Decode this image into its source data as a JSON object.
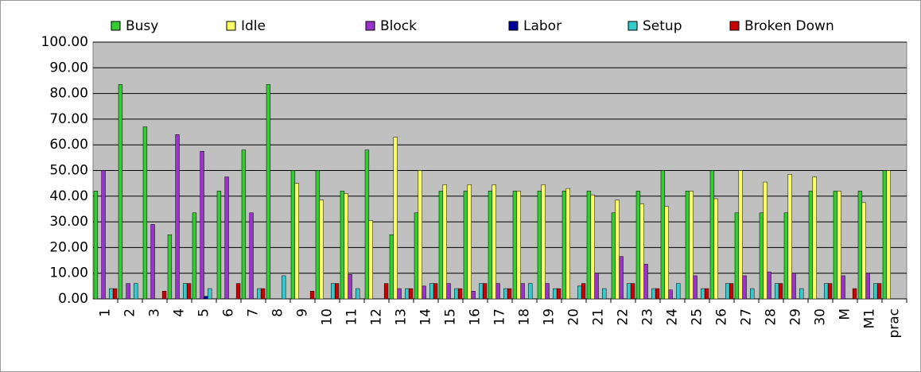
{
  "chart_data": {
    "type": "bar",
    "categories": [
      "1",
      "2",
      "3",
      "4",
      "5",
      "6",
      "7",
      "8",
      "9",
      "10",
      "11",
      "12",
      "13",
      "14",
      "15",
      "16",
      "17",
      "18",
      "19",
      "20",
      "21",
      "22",
      "23",
      "24",
      "25",
      "26",
      "27",
      "28",
      "29",
      "30",
      "M",
      "M1",
      "prac"
    ],
    "series": [
      {
        "name": "Busy",
        "color": "#33cc33",
        "values": [
          42,
          83.5,
          67,
          25,
          33.5,
          42,
          58,
          83.5,
          50,
          50,
          42,
          58,
          25,
          33.5,
          42,
          42,
          42,
          42,
          42,
          42,
          42,
          33.5,
          42,
          50,
          42,
          50,
          33.5,
          33.5,
          33.5,
          42,
          42,
          42,
          50
        ]
      },
      {
        "name": "Idle",
        "color": "#ffff66",
        "values": [
          0,
          0,
          0,
          0,
          0,
          0,
          0,
          0,
          45,
          38.5,
          41,
          30.5,
          63,
          50,
          44.5,
          44.5,
          44.5,
          42,
          44.5,
          43,
          40.5,
          38.5,
          37,
          36,
          42,
          39,
          50,
          45.5,
          48.5,
          47.5,
          42,
          37.5,
          50
        ]
      },
      {
        "name": "Block",
        "color": "#9933cc",
        "values": [
          50,
          6,
          29,
          64,
          57.5,
          47.5,
          33.5,
          0,
          0,
          0,
          9.5,
          0,
          4,
          5,
          6,
          3,
          6,
          6,
          6,
          0,
          10,
          16.5,
          13.5,
          3.5,
          9,
          0,
          9,
          10.5,
          10,
          0,
          9,
          10,
          0
        ]
      },
      {
        "name": "Labor",
        "color": "#000099",
        "values": [
          0,
          0,
          0,
          0,
          1,
          0,
          0,
          0,
          0,
          0,
          0,
          0,
          0,
          0,
          0,
          0,
          0,
          0,
          0,
          0,
          0,
          0,
          0,
          0,
          0,
          0,
          0,
          0,
          0,
          0,
          0,
          0,
          0
        ]
      },
      {
        "name": "Setup",
        "color": "#33cccc",
        "values": [
          4,
          6,
          0,
          6,
          4,
          0,
          4,
          9,
          0,
          6,
          4,
          0,
          4,
          6,
          4,
          6,
          4,
          6,
          4,
          5,
          4,
          6,
          4,
          6,
          4,
          6,
          4,
          6,
          4,
          6,
          0,
          6,
          0
        ]
      },
      {
        "name": "Broken Down",
        "color": "#cc0000",
        "values": [
          4,
          0,
          3,
          6,
          0,
          6,
          4,
          0,
          3,
          6,
          0,
          6,
          4,
          6,
          4,
          6,
          4,
          0,
          4,
          6,
          0,
          6,
          4,
          0,
          4,
          6,
          0,
          6,
          0,
          6,
          4,
          6,
          0
        ]
      }
    ],
    "ylim": [
      0,
      100
    ],
    "yticks": [
      {
        "value": 0,
        "label": "0.00"
      },
      {
        "value": 10,
        "label": "10.00"
      },
      {
        "value": 20,
        "label": "20.00"
      },
      {
        "value": 30,
        "label": "30.00"
      },
      {
        "value": 40,
        "label": "40.00"
      },
      {
        "value": 50,
        "label": "50.00"
      },
      {
        "value": 60,
        "label": "60.00"
      },
      {
        "value": 70,
        "label": "70.00"
      },
      {
        "value": 80,
        "label": "80.00"
      },
      {
        "value": 90,
        "label": "90.00"
      },
      {
        "value": 100,
        "label": "100.00"
      }
    ],
    "grid": true,
    "legend": "top"
  }
}
